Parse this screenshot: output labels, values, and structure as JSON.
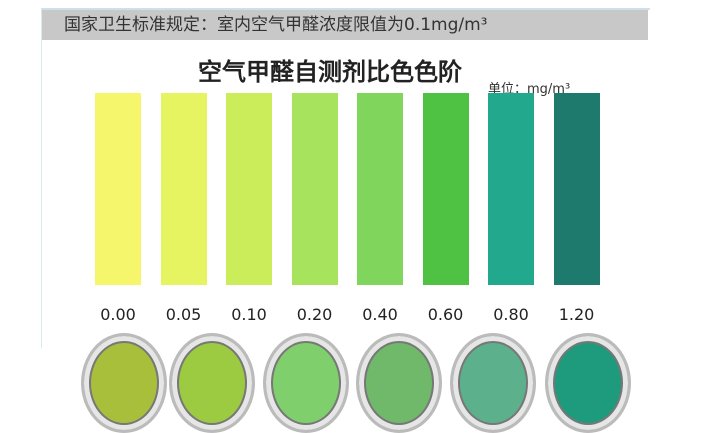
{
  "banner": "国家卫生标准规定：室内空气甲醛浓度限值为0.1mg/m³",
  "title": "空气甲醛自测剂比色色阶",
  "unit": "单位：mg/m³",
  "scale": [
    {
      "value": "0.00",
      "color": "#f6f66c"
    },
    {
      "value": "0.05",
      "color": "#e6f462"
    },
    {
      "value": "0.10",
      "color": "#cbed5a"
    },
    {
      "value": "0.20",
      "color": "#a8e35e"
    },
    {
      "value": "0.40",
      "color": "#80d65c"
    },
    {
      "value": "0.60",
      "color": "#4fc244"
    },
    {
      "value": "0.80",
      "color": "#22a88c"
    },
    {
      "value": "1.20",
      "color": "#1f7a6e"
    }
  ],
  "dishes": [
    "#a8bf3c",
    "#9ccb42",
    "#7fd06c",
    "#70b96a",
    "#5cb08c",
    "#1e9a7c"
  ]
}
